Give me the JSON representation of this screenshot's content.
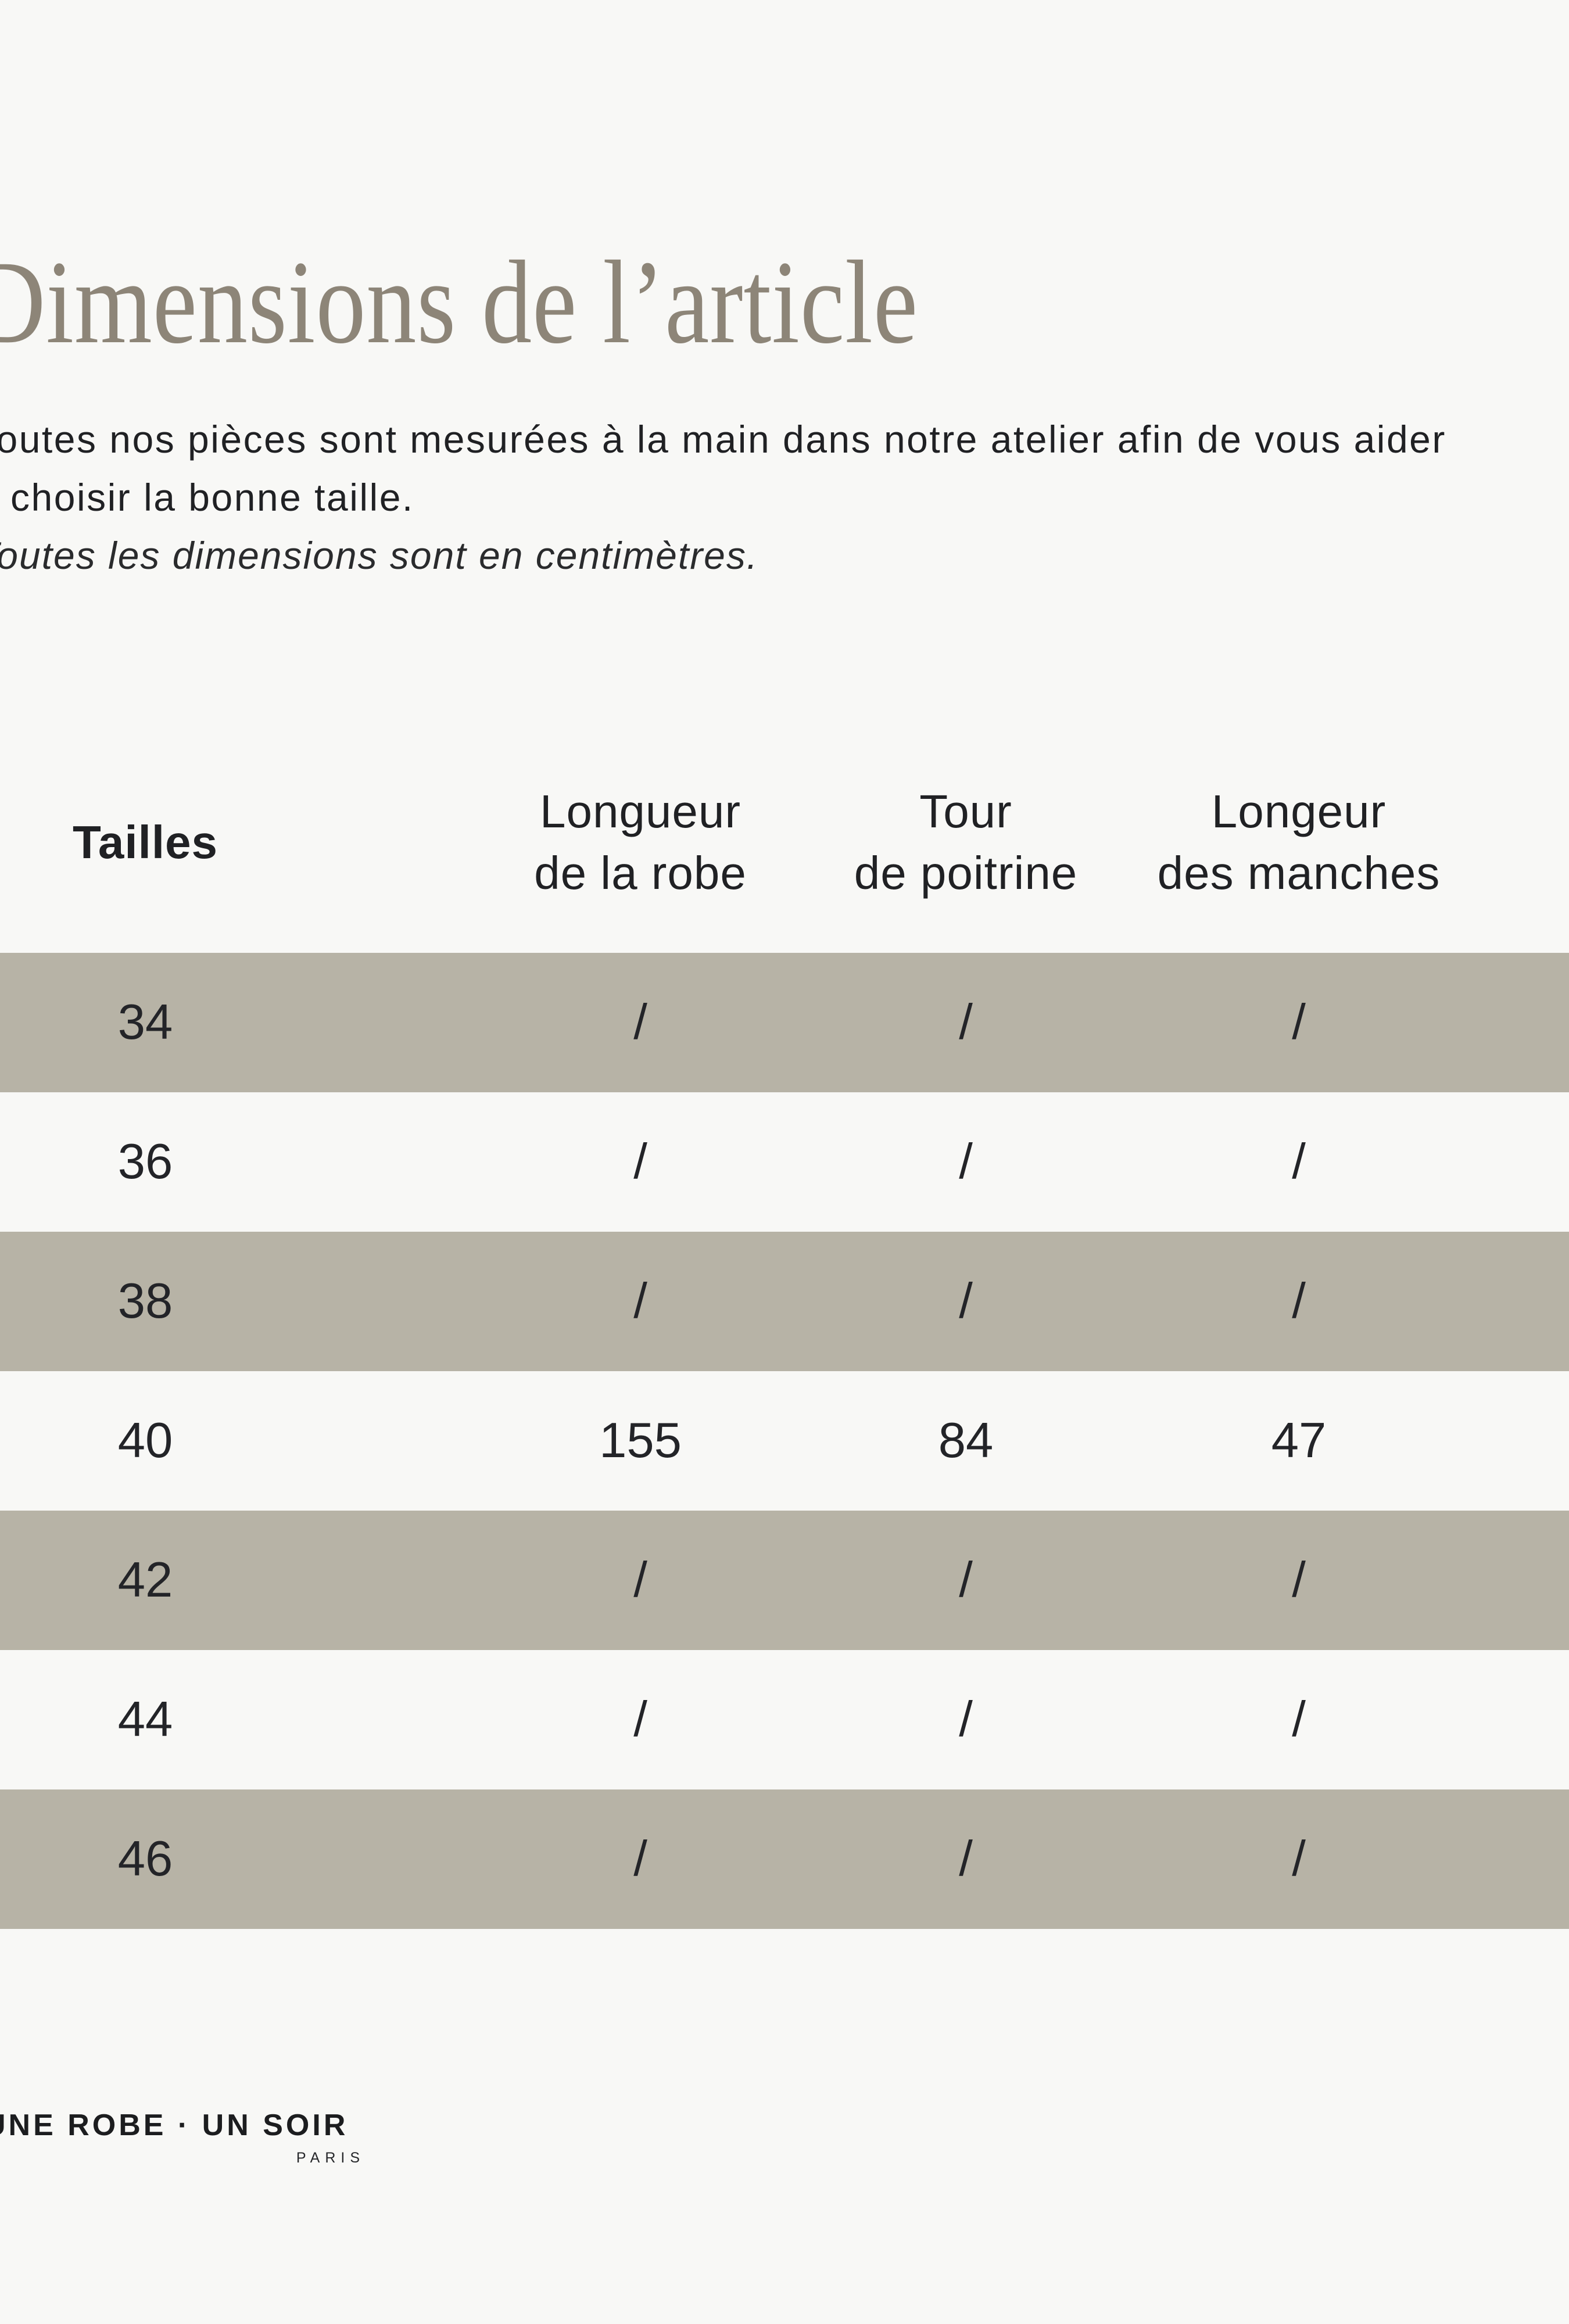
{
  "page": {
    "title": "Dimensions de l’article"
  },
  "intro": {
    "line1": "Toutes nos pièces sont mesurées à la main dans notre atelier afin de vous aider",
    "line2": "à choisir la bonne taille.",
    "note": "Toutes les dimensions sont en centimètres."
  },
  "table": {
    "columns": [
      {
        "line1": "Tailles",
        "line2": ""
      },
      {
        "line1": "Longueur",
        "line2": "de la robe"
      },
      {
        "line1": "Tour",
        "line2": "de poitrine"
      },
      {
        "line1": "Longeur",
        "line2": "des manches"
      }
    ],
    "rows": [
      {
        "size": "34",
        "values": [
          "/",
          "/",
          "/"
        ]
      },
      {
        "size": "36",
        "values": [
          "/",
          "/",
          "/"
        ]
      },
      {
        "size": "38",
        "values": [
          "/",
          "/",
          "/"
        ]
      },
      {
        "size": "40",
        "values": [
          "155",
          "84",
          "47"
        ]
      },
      {
        "size": "42",
        "values": [
          "/",
          "/",
          "/"
        ]
      },
      {
        "size": "44",
        "values": [
          "/",
          "/",
          "/"
        ]
      },
      {
        "size": "46",
        "values": [
          "/",
          "/",
          "/"
        ]
      }
    ]
  },
  "footer": {
    "brand": "UNE ROBE · UN SOIR",
    "city": "PARIS"
  },
  "colors": {
    "background": "#F8F8F6",
    "row_alt": "#B7B3A6",
    "title": "#8D8578",
    "text": "#202124",
    "logo": "#1C1D1F"
  }
}
